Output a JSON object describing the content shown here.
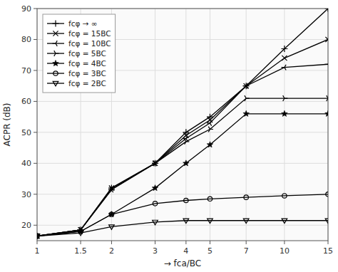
{
  "chart_data": {
    "type": "line",
    "xlabel": "→ fca/BC",
    "ylabel": "ACPR (dB)",
    "log": "x",
    "grid": true,
    "legend": "upper-left",
    "color": "#000000",
    "xlim": [
      1,
      15
    ],
    "ylim": [
      15,
      90
    ],
    "xticks": [
      1,
      1.5,
      2,
      3,
      4,
      5,
      7,
      10,
      15
    ],
    "yticks": [
      20,
      30,
      40,
      50,
      60,
      70,
      80,
      90
    ],
    "x": [
      1,
      1.5,
      2,
      3,
      4,
      5,
      7,
      10,
      15
    ],
    "series": [
      {
        "name": "fcφ → ∞",
        "marker": "plus",
        "values": [
          16.5,
          18.5,
          32,
          40,
          50,
          55,
          65,
          77,
          90
        ]
      },
      {
        "name": "fcφ = 15BC",
        "marker": "cross",
        "values": [
          16.5,
          18.5,
          32,
          40,
          49,
          54,
          65,
          74,
          80
        ]
      },
      {
        "name": "fcφ = 10BC",
        "marker": "tri-left",
        "values": [
          16.5,
          18.5,
          31.5,
          40,
          48,
          53,
          65,
          71,
          72
        ]
      },
      {
        "name": "fcφ = 5BC",
        "marker": "tri-right",
        "values": [
          16.5,
          18.5,
          31.5,
          40,
          47,
          51,
          61,
          61,
          61
        ]
      },
      {
        "name": "fcφ = 4BC",
        "marker": "star",
        "values": [
          16.5,
          18.0,
          23.5,
          32,
          40,
          46,
          56,
          56,
          56
        ]
      },
      {
        "name": "fcφ = 3BC",
        "marker": "circle",
        "values": [
          16.5,
          18.0,
          23.5,
          27,
          28,
          28.5,
          29,
          29.5,
          30
        ]
      },
      {
        "name": "fcφ = 2BC",
        "marker": "triangle-down",
        "values": [
          16.5,
          17.5,
          19.5,
          21,
          21.5,
          21.5,
          21.5,
          21.5,
          21.5
        ]
      }
    ]
  }
}
